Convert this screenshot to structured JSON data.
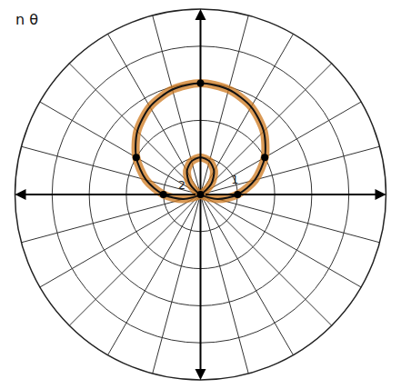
{
  "chart_data": {
    "type": "polar",
    "title": "n θ",
    "curve": {
      "theta": [
        0,
        15,
        30,
        45,
        60,
        75,
        90,
        105,
        120,
        135,
        150,
        165,
        180,
        195,
        210,
        45,
        60,
        75,
        90,
        105,
        120,
        135,
        330,
        345,
        360
      ],
      "r": [
        1,
        1.52,
        2,
        2.41,
        2.73,
        2.93,
        3,
        2.93,
        2.73,
        2.41,
        2,
        1.52,
        1,
        0.48,
        0,
        0.41,
        0.73,
        0.93,
        1,
        0.93,
        0.73,
        0.41,
        0,
        0.48,
        1
      ],
      "color": "#111111"
    },
    "points": {
      "theta": [
        90,
        30,
        150,
        0,
        180,
        0
      ],
      "r": [
        3,
        2,
        2,
        1,
        1,
        0
      ],
      "color": "#000000",
      "marker": "circle"
    },
    "annotations": [
      {
        "text": "2",
        "r": 0.56,
        "theta": 155
      },
      {
        "text": "1",
        "r": 1.0,
        "theta": 22
      }
    ],
    "rlim": [
      0,
      5
    ],
    "rticks": [
      1,
      2,
      3,
      4,
      5
    ],
    "thetaticks": [
      0,
      15,
      30,
      45,
      60,
      75,
      90,
      105,
      120,
      135,
      150,
      165,
      180,
      195,
      210,
      225,
      240,
      255,
      270,
      285,
      300,
      315,
      330,
      345
    ],
    "grid": true,
    "tick_labels": false
  }
}
